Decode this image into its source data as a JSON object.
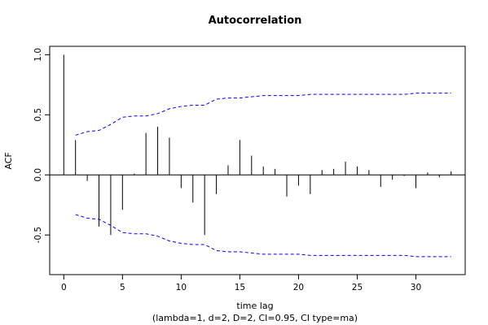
{
  "chart_data": {
    "type": "bar",
    "title": "Autocorrelation",
    "xlabel": "time lag",
    "subtitle": "(lambda=1, d=2, D=2, CI=0.95, CI type=ma)",
    "ylabel": "ACF",
    "xlim": [
      -1.2,
      34.2
    ],
    "ylim": [
      -0.83,
      1.07
    ],
    "x_ticks": [
      0,
      5,
      10,
      15,
      20,
      25,
      30
    ],
    "y_ticks": [
      -0.5,
      0.0,
      0.5,
      1.0
    ],
    "y_tick_labels": [
      "-0.5",
      "0.0",
      "0.5",
      "1.0"
    ],
    "grid": false,
    "lags": [
      0,
      1,
      2,
      3,
      4,
      5,
      6,
      7,
      8,
      9,
      10,
      11,
      12,
      13,
      14,
      15,
      16,
      17,
      18,
      19,
      20,
      21,
      22,
      23,
      24,
      25,
      26,
      27,
      28,
      29,
      30,
      31,
      32,
      33
    ],
    "acf": [
      1.0,
      0.29,
      -0.05,
      -0.43,
      -0.5,
      -0.29,
      0.01,
      0.35,
      0.4,
      0.31,
      -0.11,
      -0.23,
      -0.5,
      -0.16,
      0.08,
      0.29,
      0.16,
      0.07,
      0.05,
      -0.18,
      -0.09,
      -0.16,
      0.04,
      0.05,
      0.11,
      0.07,
      0.04,
      -0.1,
      -0.04,
      -0.01,
      -0.11,
      0.02,
      -0.02,
      0.03
    ],
    "series": [
      {
        "name": "",
        "style": "solid",
        "color": "#000000"
      },
      {
        "name": "",
        "style": "dashed",
        "color": "#0000ff"
      }
    ],
    "ci_upper": [
      0.33,
      0.36,
      0.37,
      0.42,
      0.48,
      0.49,
      0.49,
      0.51,
      0.55,
      0.57,
      0.58,
      0.58,
      0.63,
      0.64,
      0.64,
      0.65,
      0.66,
      0.66,
      0.66,
      0.66,
      0.67,
      0.67,
      0.67,
      0.67,
      0.67,
      0.67,
      0.67,
      0.67,
      0.67,
      0.68,
      0.68,
      0.68,
      0.68
    ],
    "ci_lower": [
      -0.33,
      -0.36,
      -0.37,
      -0.42,
      -0.48,
      -0.49,
      -0.49,
      -0.51,
      -0.55,
      -0.57,
      -0.58,
      -0.58,
      -0.63,
      -0.64,
      -0.64,
      -0.65,
      -0.66,
      -0.66,
      -0.66,
      -0.66,
      -0.67,
      -0.67,
      -0.67,
      -0.67,
      -0.67,
      -0.67,
      -0.67,
      -0.67,
      -0.67,
      -0.68,
      -0.68,
      -0.68,
      -0.68
    ],
    "ci_start_lag": 1
  }
}
